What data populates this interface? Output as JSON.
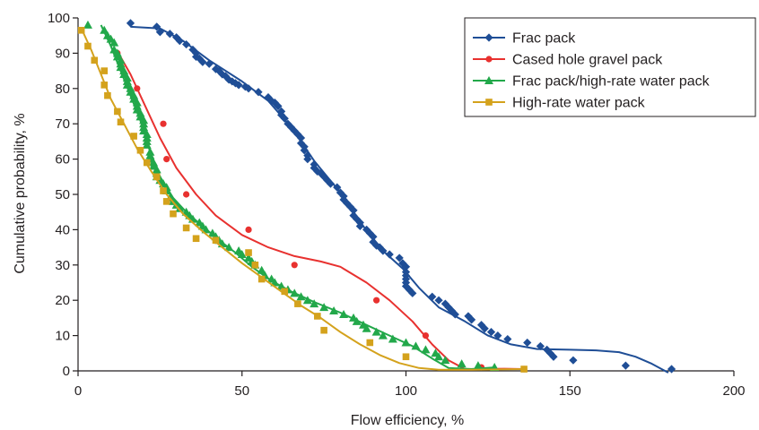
{
  "chart_data": {
    "type": "scatter",
    "xlabel": "Flow efficiency, %",
    "ylabel": "Cumulative probability, %",
    "xlim": [
      0,
      200
    ],
    "ylim": [
      0,
      100
    ],
    "x_ticks": [
      "0",
      "50",
      "100",
      "150",
      "200"
    ],
    "y_ticks": [
      "0",
      "10",
      "20",
      "30",
      "40",
      "50",
      "60",
      "70",
      "80",
      "90",
      "100"
    ],
    "grid": false,
    "legend_position": "top-right",
    "series": [
      {
        "name": "Frac pack",
        "color": "#1f4e96",
        "marker": "diamond",
        "points": [
          [
            16,
            98.5
          ],
          [
            24,
            97.5
          ],
          [
            25,
            96
          ],
          [
            28,
            95.5
          ],
          [
            30,
            94.5
          ],
          [
            31,
            93.5
          ],
          [
            33,
            92.5
          ],
          [
            35,
            91
          ],
          [
            36,
            90
          ],
          [
            36,
            89
          ],
          [
            37,
            88.5
          ],
          [
            38,
            87.5
          ],
          [
            40,
            87
          ],
          [
            42,
            85.5
          ],
          [
            43,
            85
          ],
          [
            44,
            84
          ],
          [
            45,
            83.5
          ],
          [
            46,
            82.5
          ],
          [
            47,
            82
          ],
          [
            48,
            81.5
          ],
          [
            49,
            81
          ],
          [
            51,
            80.5
          ],
          [
            52,
            80
          ],
          [
            55,
            79
          ],
          [
            58,
            77.5
          ],
          [
            59,
            76.5
          ],
          [
            60,
            76
          ],
          [
            61,
            75
          ],
          [
            62,
            73.5
          ],
          [
            62,
            72.5
          ],
          [
            63,
            71.5
          ],
          [
            64,
            70
          ],
          [
            65,
            69
          ],
          [
            66,
            68
          ],
          [
            67,
            67
          ],
          [
            68,
            66
          ],
          [
            68,
            64.5
          ],
          [
            69,
            63.5
          ],
          [
            69,
            62.5
          ],
          [
            70,
            61
          ],
          [
            70,
            60
          ],
          [
            72,
            58.5
          ],
          [
            72,
            57.5
          ],
          [
            73,
            56.5
          ],
          [
            74,
            56
          ],
          [
            75,
            55
          ],
          [
            76,
            54
          ],
          [
            77,
            53
          ],
          [
            79,
            52
          ],
          [
            80,
            50.5
          ],
          [
            81,
            49.5
          ],
          [
            81,
            48.5
          ],
          [
            82,
            47.5
          ],
          [
            83,
            46.5
          ],
          [
            84,
            45.5
          ],
          [
            84,
            44
          ],
          [
            85,
            43
          ],
          [
            86,
            42
          ],
          [
            86,
            41
          ],
          [
            88,
            40
          ],
          [
            89,
            39
          ],
          [
            90,
            38
          ],
          [
            90,
            36.5
          ],
          [
            91,
            35.5
          ],
          [
            92,
            35
          ],
          [
            93,
            34
          ],
          [
            95,
            33
          ],
          [
            98,
            32
          ],
          [
            99,
            30.5
          ],
          [
            100,
            29.5
          ],
          [
            100,
            28
          ],
          [
            100,
            27
          ],
          [
            100,
            26
          ],
          [
            100,
            25
          ],
          [
            100,
            24
          ],
          [
            101,
            23
          ],
          [
            102,
            22
          ],
          [
            108,
            21
          ],
          [
            110,
            20
          ],
          [
            112,
            19
          ],
          [
            113,
            18
          ],
          [
            114,
            17
          ],
          [
            115,
            16
          ],
          [
            119,
            15.5
          ],
          [
            120,
            14.5
          ],
          [
            123,
            13
          ],
          [
            124,
            12
          ],
          [
            126,
            11
          ],
          [
            128,
            10
          ],
          [
            131,
            9
          ],
          [
            137,
            8
          ],
          [
            141,
            7
          ],
          [
            143,
            6
          ],
          [
            144,
            5
          ],
          [
            145,
            4
          ],
          [
            151,
            3
          ],
          [
            167,
            1.5
          ],
          [
            181,
            0.5
          ]
        ],
        "curve": [
          [
            16,
            97.5
          ],
          [
            25,
            97
          ],
          [
            32,
            93.5
          ],
          [
            40,
            88
          ],
          [
            50,
            82
          ],
          [
            58,
            76.5
          ],
          [
            65,
            69
          ],
          [
            72,
            59.5
          ],
          [
            80,
            50.5
          ],
          [
            87,
            41
          ],
          [
            93,
            34
          ],
          [
            99,
            29
          ],
          [
            104,
            23.5
          ],
          [
            110,
            18
          ],
          [
            118,
            14
          ],
          [
            125,
            10
          ],
          [
            132,
            7.5
          ],
          [
            140,
            6.2
          ],
          [
            150,
            6
          ],
          [
            158,
            5.8
          ],
          [
            165,
            5.3
          ],
          [
            170,
            4
          ],
          [
            175,
            2
          ],
          [
            180,
            -0.5
          ]
        ]
      },
      {
        "name": "Cased hole gravel pack",
        "color": "#e8312f",
        "marker": "circle",
        "points": [
          [
            12,
            90
          ],
          [
            18,
            80
          ],
          [
            26,
            70
          ],
          [
            27,
            60
          ],
          [
            33,
            50
          ],
          [
            52,
            40
          ],
          [
            66,
            30
          ],
          [
            91,
            20
          ],
          [
            106,
            10
          ],
          [
            123,
            1
          ],
          [
            136,
            0.5
          ]
        ],
        "curve": [
          [
            12,
            90.5
          ],
          [
            16,
            84
          ],
          [
            20,
            76
          ],
          [
            25,
            66
          ],
          [
            30,
            57.5
          ],
          [
            36,
            50
          ],
          [
            42,
            44
          ],
          [
            50,
            38.5
          ],
          [
            58,
            35
          ],
          [
            66,
            32.5
          ],
          [
            74,
            31
          ],
          [
            80,
            29.5
          ],
          [
            88,
            25
          ],
          [
            95,
            20
          ],
          [
            102,
            14
          ],
          [
            108,
            7.5
          ],
          [
            113,
            3
          ],
          [
            118,
            0.5
          ],
          [
            130,
            0.6
          ],
          [
            136,
            0.5
          ]
        ]
      },
      {
        "name": "Frac pack/high-rate water pack",
        "color": "#22a84a",
        "marker": "triangle",
        "points": [
          [
            3,
            98
          ],
          [
            8,
            96.5
          ],
          [
            9,
            95
          ],
          [
            10,
            94
          ],
          [
            11,
            93
          ],
          [
            11,
            91
          ],
          [
            12,
            90
          ],
          [
            12,
            89
          ],
          [
            13,
            88
          ],
          [
            13,
            87
          ],
          [
            13,
            86
          ],
          [
            14,
            85
          ],
          [
            14,
            84
          ],
          [
            15,
            83
          ],
          [
            15,
            82
          ],
          [
            15,
            81
          ],
          [
            16,
            80
          ],
          [
            16,
            79
          ],
          [
            17,
            78
          ],
          [
            17,
            77
          ],
          [
            18,
            76
          ],
          [
            18,
            75
          ],
          [
            18,
            74
          ],
          [
            19,
            73
          ],
          [
            19,
            72
          ],
          [
            20,
            71
          ],
          [
            20,
            70
          ],
          [
            20,
            69
          ],
          [
            20,
            68
          ],
          [
            21,
            67
          ],
          [
            21,
            66
          ],
          [
            21,
            65
          ],
          [
            21,
            64
          ],
          [
            22,
            62
          ],
          [
            22,
            61
          ],
          [
            22,
            60
          ],
          [
            23,
            59
          ],
          [
            23,
            58
          ],
          [
            24,
            57
          ],
          [
            24,
            56
          ],
          [
            24,
            55
          ],
          [
            25,
            54
          ],
          [
            26,
            53
          ],
          [
            27,
            52
          ],
          [
            27,
            51
          ],
          [
            28,
            49
          ],
          [
            29,
            48
          ],
          [
            30,
            47
          ],
          [
            31,
            46
          ],
          [
            33,
            45
          ],
          [
            34,
            44
          ],
          [
            35,
            43
          ],
          [
            37,
            42
          ],
          [
            38,
            41
          ],
          [
            39,
            40
          ],
          [
            41,
            39
          ],
          [
            42,
            38
          ],
          [
            43,
            37
          ],
          [
            44,
            36
          ],
          [
            46,
            35
          ],
          [
            49,
            34
          ],
          [
            50,
            33
          ],
          [
            52,
            32
          ],
          [
            53,
            31
          ],
          [
            54,
            30
          ],
          [
            56,
            28.5
          ],
          [
            57,
            27
          ],
          [
            59,
            26
          ],
          [
            60,
            25
          ],
          [
            62,
            24
          ],
          [
            64,
            23
          ],
          [
            66,
            22
          ],
          [
            68,
            21
          ],
          [
            70,
            20
          ],
          [
            72,
            19
          ],
          [
            75,
            18
          ],
          [
            78,
            17
          ],
          [
            81,
            16
          ],
          [
            84,
            15
          ],
          [
            85,
            14
          ],
          [
            87,
            13
          ],
          [
            88,
            12
          ],
          [
            91,
            11
          ],
          [
            93,
            10
          ],
          [
            96,
            9
          ],
          [
            100,
            8
          ],
          [
            103,
            7
          ],
          [
            106,
            6
          ],
          [
            109,
            5
          ],
          [
            110,
            4
          ],
          [
            112,
            3
          ],
          [
            117,
            2
          ],
          [
            122,
            1.5
          ],
          [
            127,
            1
          ]
        ],
        "curve": [
          [
            7,
            98
          ],
          [
            10,
            92
          ],
          [
            13,
            85
          ],
          [
            16,
            78
          ],
          [
            19,
            71
          ],
          [
            22,
            62
          ],
          [
            25,
            55
          ],
          [
            29,
            49
          ],
          [
            33,
            45
          ],
          [
            38,
            41
          ],
          [
            43,
            37
          ],
          [
            48,
            33.5
          ],
          [
            53,
            29.5
          ],
          [
            59,
            25.5
          ],
          [
            65,
            22.5
          ],
          [
            72,
            19.5
          ],
          [
            80,
            16.5
          ],
          [
            88,
            13
          ],
          [
            95,
            10
          ],
          [
            102,
            7
          ],
          [
            108,
            3.5
          ],
          [
            113,
            0.8
          ],
          [
            120,
            0.5
          ],
          [
            127,
            1
          ]
        ]
      },
      {
        "name": "High-rate water pack",
        "color": "#d4a21c",
        "marker": "square",
        "points": [
          [
            1,
            96.5
          ],
          [
            3,
            92
          ],
          [
            5,
            88
          ],
          [
            8,
            85
          ],
          [
            8,
            81
          ],
          [
            9,
            78
          ],
          [
            12,
            73.5
          ],
          [
            13,
            70.5
          ],
          [
            17,
            66.5
          ],
          [
            19,
            62.5
          ],
          [
            21,
            59
          ],
          [
            24,
            55
          ],
          [
            26,
            51
          ],
          [
            27,
            48
          ],
          [
            29,
            44.5
          ],
          [
            33,
            40.5
          ],
          [
            36,
            37.5
          ],
          [
            42,
            37
          ],
          [
            52,
            33.5
          ],
          [
            54,
            30
          ],
          [
            56,
            26
          ],
          [
            63,
            22.5
          ],
          [
            67,
            19
          ],
          [
            73,
            15.5
          ],
          [
            75,
            11.5
          ],
          [
            89,
            8
          ],
          [
            100,
            4
          ],
          [
            136,
            0.5
          ]
        ],
        "curve": [
          [
            1,
            97
          ],
          [
            4,
            91
          ],
          [
            7,
            84
          ],
          [
            10,
            77
          ],
          [
            14,
            70
          ],
          [
            18,
            63
          ],
          [
            22,
            57
          ],
          [
            27,
            50
          ],
          [
            32,
            44.5
          ],
          [
            38,
            39.5
          ],
          [
            44,
            35
          ],
          [
            50,
            30.5
          ],
          [
            56,
            26.5
          ],
          [
            62,
            22.5
          ],
          [
            68,
            18.5
          ],
          [
            74,
            15
          ],
          [
            80,
            11
          ],
          [
            86,
            7.5
          ],
          [
            92,
            4.5
          ],
          [
            98,
            2.2
          ],
          [
            104,
            0.8
          ],
          [
            110,
            0.3
          ],
          [
            120,
            0.3
          ],
          [
            136,
            0.5
          ]
        ]
      }
    ]
  }
}
